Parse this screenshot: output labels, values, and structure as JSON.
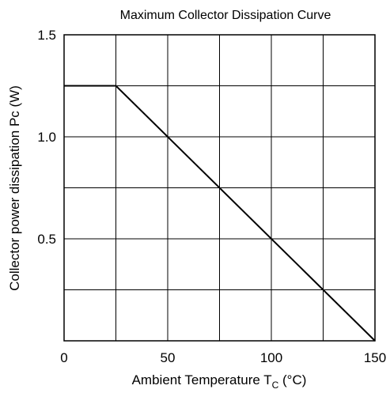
{
  "chart_data": {
    "type": "line",
    "title": "Maximum Collector Dissipation Curve",
    "xlabel": {
      "prefix": "Ambient Temperature  T",
      "subscript": "C",
      "suffix": "  (°C)"
    },
    "ylabel": "Collector power dissipation  Pc  (W)",
    "xlim": [
      0,
      150
    ],
    "ylim": [
      0,
      1.5
    ],
    "x_ticks": [
      0,
      50,
      100,
      150
    ],
    "x_tick_labels": [
      "0",
      "50",
      "100",
      "150"
    ],
    "y_ticks": [
      0.5,
      1.0,
      1.5
    ],
    "y_tick_labels": [
      "0.5",
      "1.0",
      "1.5"
    ],
    "x_grid": [
      25,
      50,
      75,
      100,
      125
    ],
    "y_grid": [
      0.25,
      0.5,
      0.75,
      1.0,
      1.25
    ],
    "grid": true,
    "series": [
      {
        "x": [
          0,
          25,
          150
        ],
        "y": [
          1.25,
          1.25,
          0
        ],
        "color": "#000000"
      }
    ]
  }
}
